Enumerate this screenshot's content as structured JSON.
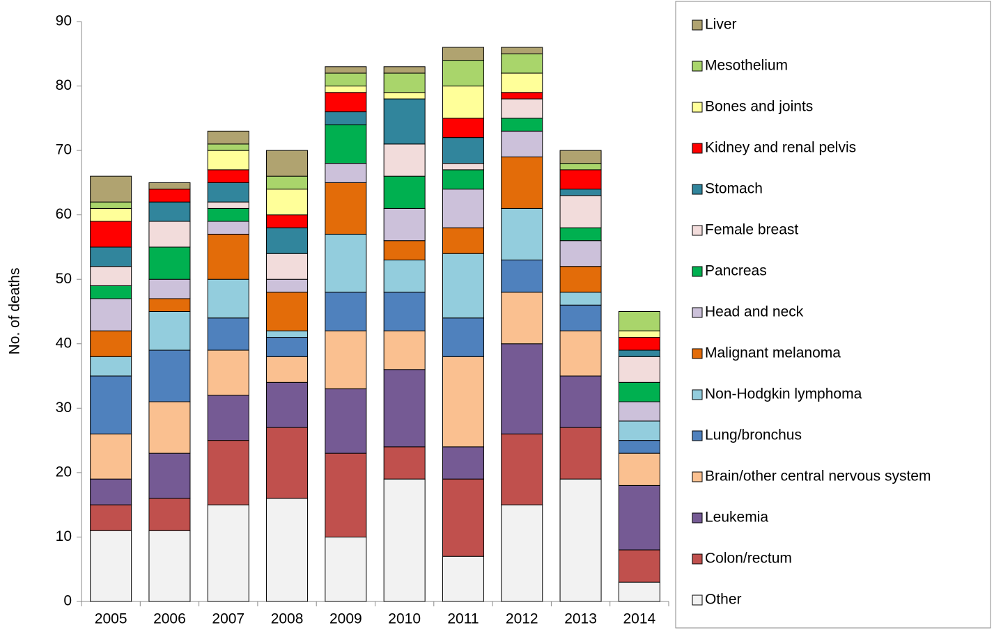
{
  "chart_data": {
    "type": "stacked-bar",
    "y_label": "No. of deaths",
    "categories": [
      "2005",
      "2006",
      "2007",
      "2008",
      "2009",
      "2010",
      "2011",
      "2012",
      "2013",
      "2014"
    ],
    "ylim": [
      0,
      90
    ],
    "yticks": [
      0,
      10,
      20,
      30,
      40,
      50,
      60,
      70,
      80,
      90
    ],
    "legend": "right",
    "series": [
      {
        "name": "Other",
        "color": "#f2f2f2",
        "values": [
          11,
          11,
          15,
          16,
          10,
          19,
          7,
          15,
          19,
          3
        ]
      },
      {
        "name": "Colon/rectum",
        "color": "#c0504d",
        "values": [
          4,
          5,
          10,
          11,
          13,
          5,
          12,
          11,
          8,
          5
        ]
      },
      {
        "name": "Leukemia",
        "color": "#755a94",
        "values": [
          4,
          7,
          7,
          7,
          10,
          12,
          5,
          14,
          8,
          10
        ]
      },
      {
        "name": "Brain/other central nervous system",
        "color": "#fac090",
        "values": [
          7,
          8,
          7,
          4,
          9,
          6,
          14,
          8,
          7,
          5
        ]
      },
      {
        "name": "Lung/bronchus",
        "color": "#4f81bd",
        "values": [
          9,
          8,
          5,
          3,
          6,
          6,
          6,
          5,
          4,
          2
        ]
      },
      {
        "name": "Non-Hodgkin lymphoma",
        "color": "#93cddd",
        "values": [
          3,
          6,
          6,
          1,
          9,
          5,
          10,
          8,
          2,
          3
        ]
      },
      {
        "name": "Malignant melanoma",
        "color": "#e36c09",
        "values": [
          4,
          2,
          7,
          6,
          8,
          3,
          4,
          8,
          4,
          0
        ]
      },
      {
        "name": "Head and neck",
        "color": "#ccc1da",
        "values": [
          5,
          3,
          2,
          2,
          3,
          5,
          6,
          4,
          4,
          3
        ]
      },
      {
        "name": "Pancreas",
        "color": "#00b050",
        "values": [
          2,
          5,
          2,
          0,
          6,
          5,
          3,
          2,
          2,
          3
        ]
      },
      {
        "name": "Female breast",
        "color": "#f2dcdb",
        "values": [
          3,
          4,
          1,
          4,
          0,
          5,
          1,
          3,
          5,
          4
        ]
      },
      {
        "name": "Stomach",
        "color": "#31859c",
        "values": [
          3,
          3,
          3,
          4,
          2,
          7,
          4,
          0,
          1,
          1
        ]
      },
      {
        "name": "Kidney and renal pelvis",
        "color": "#ff0000",
        "values": [
          4,
          2,
          2,
          2,
          3,
          0,
          3,
          1,
          3,
          2
        ]
      },
      {
        "name": "Bones and joints",
        "color": "#ffff99",
        "values": [
          2,
          0,
          3,
          4,
          1,
          1,
          5,
          3,
          0,
          1
        ]
      },
      {
        "name": "Mesothelium",
        "color": "#a9d56b",
        "values": [
          1,
          0,
          1,
          2,
          2,
          3,
          4,
          3,
          1,
          3
        ]
      },
      {
        "name": "Liver",
        "color": "#b0a370",
        "values": [
          4,
          1,
          2,
          4,
          1,
          1,
          2,
          1,
          2,
          0
        ]
      }
    ]
  }
}
